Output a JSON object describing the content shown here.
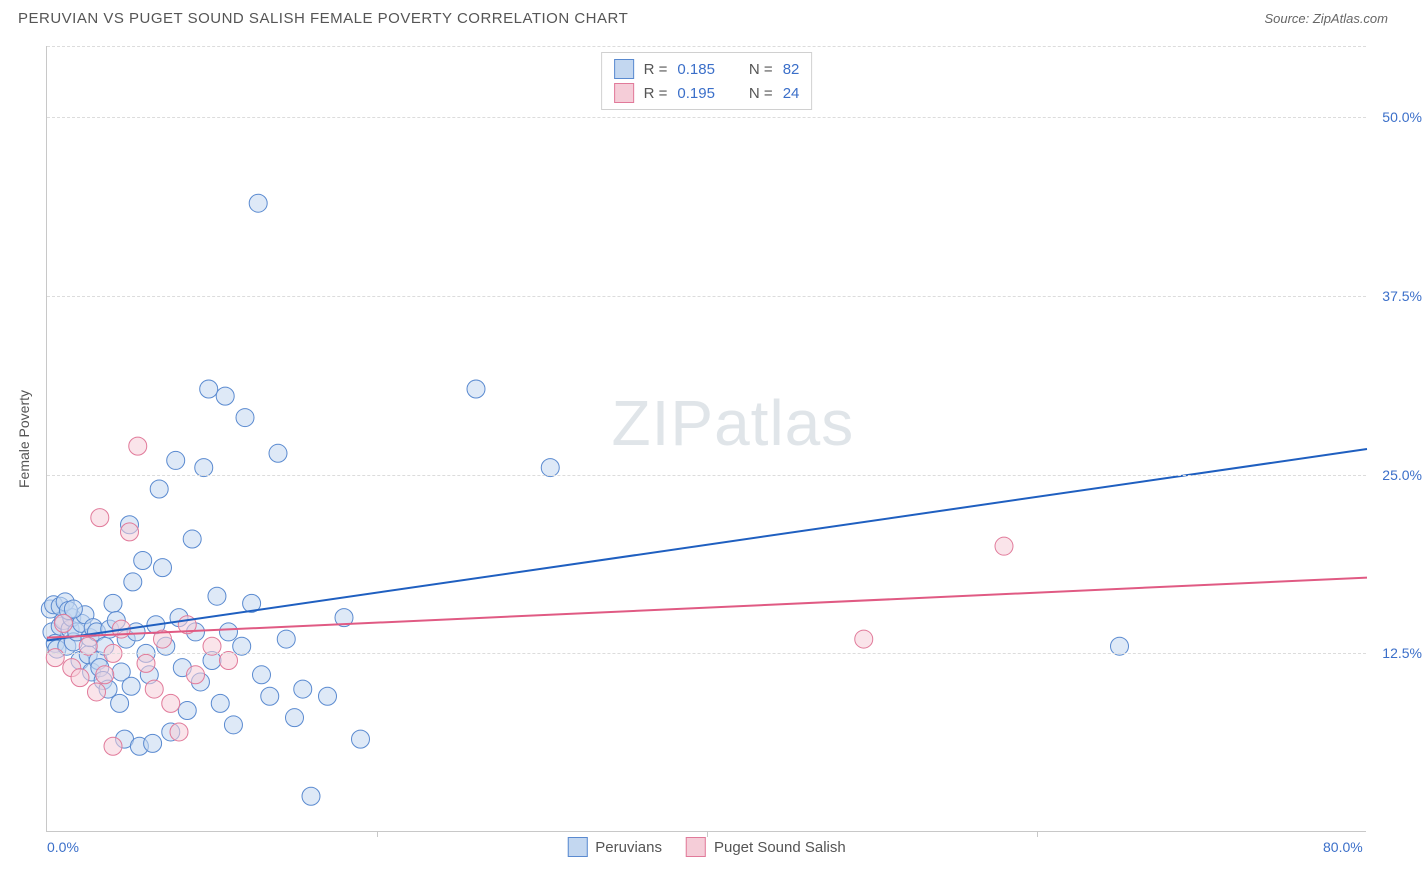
{
  "header": {
    "title": "PERUVIAN VS PUGET SOUND SALISH FEMALE POVERTY CORRELATION CHART",
    "source_label": "Source: ",
    "source_name": "ZipAtlas.com"
  },
  "chart": {
    "type": "scatter",
    "ylabel": "Female Poverty",
    "xlim": [
      0,
      80
    ],
    "ylim": [
      0,
      55
    ],
    "xticks": [
      {
        "pos": 0,
        "label": "0.0%"
      },
      {
        "pos": 80,
        "label": "80.0%"
      }
    ],
    "xtick_marks": [
      20,
      40,
      60
    ],
    "yticks": [
      {
        "pos": 12.5,
        "label": "12.5%"
      },
      {
        "pos": 25.0,
        "label": "25.0%"
      },
      {
        "pos": 37.5,
        "label": "37.5%"
      },
      {
        "pos": 50.0,
        "label": "50.0%"
      }
    ],
    "ygrid": [
      12.5,
      25.0,
      37.5,
      50.0,
      55.0
    ],
    "background_color": "#ffffff",
    "grid_color": "#dcdcdc",
    "axis_color": "#c8c8c8",
    "tick_label_color": "#3b6fc9",
    "watermark_text_a": "ZIP",
    "watermark_text_b": "atlas",
    "series": [
      {
        "name": "Peruvians",
        "fill_color": "#c3d7f0",
        "stroke_color": "#5a8ad0",
        "line_color": "#1f5fc0",
        "marker_radius": 9,
        "fill_opacity": 0.55,
        "r_value": "0.185",
        "n_value": "82",
        "trendline": {
          "x1": 0,
          "y1": 13.4,
          "x2": 80,
          "y2": 26.8
        },
        "points": [
          [
            0.3,
            14.0
          ],
          [
            0.5,
            13.2
          ],
          [
            0.6,
            12.8
          ],
          [
            0.8,
            14.4
          ],
          [
            1.0,
            14.8
          ],
          [
            1.2,
            13.0
          ],
          [
            1.4,
            14.2
          ],
          [
            1.5,
            15.0
          ],
          [
            1.6,
            13.3
          ],
          [
            1.8,
            14.0
          ],
          [
            2.0,
            12.0
          ],
          [
            2.1,
            14.6
          ],
          [
            2.3,
            15.2
          ],
          [
            2.5,
            12.4
          ],
          [
            2.6,
            13.6
          ],
          [
            2.7,
            11.2
          ],
          [
            2.8,
            14.3
          ],
          [
            3.0,
            14.0
          ],
          [
            3.1,
            12.0
          ],
          [
            3.2,
            11.5
          ],
          [
            3.4,
            10.6
          ],
          [
            3.5,
            13.0
          ],
          [
            3.7,
            10.0
          ],
          [
            3.8,
            14.2
          ],
          [
            4.0,
            16.0
          ],
          [
            4.2,
            14.8
          ],
          [
            4.4,
            9.0
          ],
          [
            4.5,
            11.2
          ],
          [
            4.7,
            6.5
          ],
          [
            4.8,
            13.5
          ],
          [
            5.0,
            21.5
          ],
          [
            5.1,
            10.2
          ],
          [
            5.2,
            17.5
          ],
          [
            5.4,
            14.0
          ],
          [
            5.6,
            6.0
          ],
          [
            5.8,
            19.0
          ],
          [
            6.0,
            12.5
          ],
          [
            6.2,
            11.0
          ],
          [
            6.4,
            6.2
          ],
          [
            6.6,
            14.5
          ],
          [
            6.8,
            24.0
          ],
          [
            7.0,
            18.5
          ],
          [
            7.2,
            13.0
          ],
          [
            7.5,
            7.0
          ],
          [
            7.8,
            26.0
          ],
          [
            8.0,
            15.0
          ],
          [
            8.2,
            11.5
          ],
          [
            8.5,
            8.5
          ],
          [
            8.8,
            20.5
          ],
          [
            9.0,
            14.0
          ],
          [
            9.3,
            10.5
          ],
          [
            9.5,
            25.5
          ],
          [
            9.8,
            31.0
          ],
          [
            10.0,
            12.0
          ],
          [
            10.3,
            16.5
          ],
          [
            10.5,
            9.0
          ],
          [
            10.8,
            30.5
          ],
          [
            11.0,
            14.0
          ],
          [
            11.3,
            7.5
          ],
          [
            11.8,
            13.0
          ],
          [
            12.0,
            29.0
          ],
          [
            12.4,
            16.0
          ],
          [
            12.8,
            44.0
          ],
          [
            13.0,
            11.0
          ],
          [
            13.5,
            9.5
          ],
          [
            14.0,
            26.5
          ],
          [
            14.5,
            13.5
          ],
          [
            15.0,
            8.0
          ],
          [
            15.5,
            10.0
          ],
          [
            16.0,
            2.5
          ],
          [
            17.0,
            9.5
          ],
          [
            18.0,
            15.0
          ],
          [
            19.0,
            6.5
          ],
          [
            26.0,
            31.0
          ],
          [
            30.5,
            25.5
          ],
          [
            65.0,
            13.0
          ],
          [
            0.2,
            15.6
          ],
          [
            0.4,
            15.9
          ],
          [
            0.8,
            15.8
          ],
          [
            1.1,
            16.1
          ],
          [
            1.3,
            15.5
          ],
          [
            1.6,
            15.6
          ]
        ]
      },
      {
        "name": "Puget Sound Salish",
        "fill_color": "#f5cdd8",
        "stroke_color": "#e17a9a",
        "line_color": "#e05a83",
        "marker_radius": 9,
        "fill_opacity": 0.55,
        "r_value": "0.195",
        "n_value": "24",
        "trendline": {
          "x1": 0,
          "y1": 13.6,
          "x2": 80,
          "y2": 17.8
        },
        "points": [
          [
            0.5,
            12.2
          ],
          [
            1.0,
            14.6
          ],
          [
            1.5,
            11.5
          ],
          [
            2.0,
            10.8
          ],
          [
            2.5,
            13.0
          ],
          [
            3.0,
            9.8
          ],
          [
            3.5,
            11.0
          ],
          [
            4.0,
            12.5
          ],
          [
            4.5,
            14.2
          ],
          [
            5.0,
            21.0
          ],
          [
            5.5,
            27.0
          ],
          [
            6.0,
            11.8
          ],
          [
            6.5,
            10.0
          ],
          [
            7.0,
            13.5
          ],
          [
            7.5,
            9.0
          ],
          [
            8.0,
            7.0
          ],
          [
            8.5,
            14.5
          ],
          [
            9.0,
            11.0
          ],
          [
            10.0,
            13.0
          ],
          [
            11.0,
            12.0
          ],
          [
            4.0,
            6.0
          ],
          [
            3.2,
            22.0
          ],
          [
            49.5,
            13.5
          ],
          [
            58.0,
            20.0
          ]
        ]
      }
    ],
    "legend_top": {
      "r_label": "R =",
      "n_label": "N ="
    },
    "legend_bottom": [
      {
        "label": "Peruvians",
        "series": 0
      },
      {
        "label": "Puget Sound Salish",
        "series": 1
      }
    ]
  }
}
